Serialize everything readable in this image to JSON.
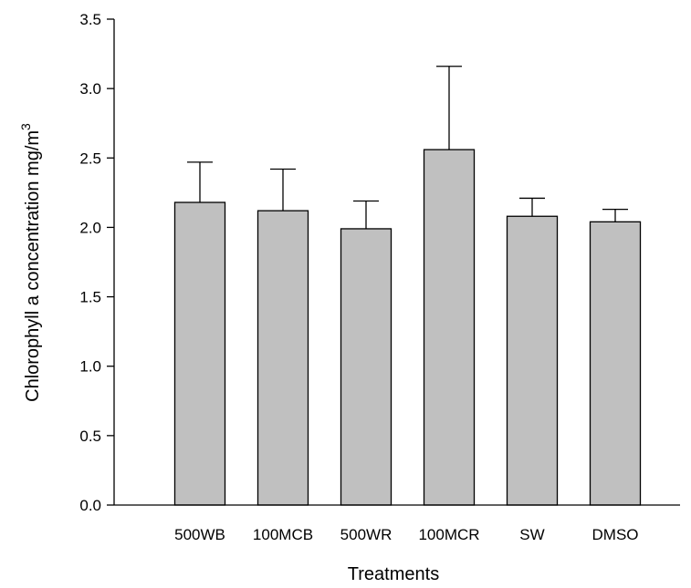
{
  "chart_data": {
    "type": "bar",
    "title": "",
    "xlabel": "Treatments",
    "ylabel": {
      "prefix": "Chlorophyll a concentration mg/m",
      "superscript": "3"
    },
    "categories": [
      "500WB",
      "100MCB",
      "500WR",
      "100MCR",
      "SW",
      "DMSO"
    ],
    "values": [
      2.18,
      2.12,
      1.99,
      2.56,
      2.08,
      2.04
    ],
    "errors": [
      0.29,
      0.3,
      0.2,
      0.6,
      0.13,
      0.09
    ],
    "ylim": [
      0,
      3.5
    ],
    "yticks": [
      "0.0",
      "0.5",
      "1.0",
      "1.5",
      "2.0",
      "2.5",
      "3.0",
      "3.5"
    ],
    "grid": false,
    "legend": "none",
    "colors": {
      "bar_fill": "#c0c0c0",
      "bar_stroke": "#000000",
      "axis": "#000000"
    }
  }
}
